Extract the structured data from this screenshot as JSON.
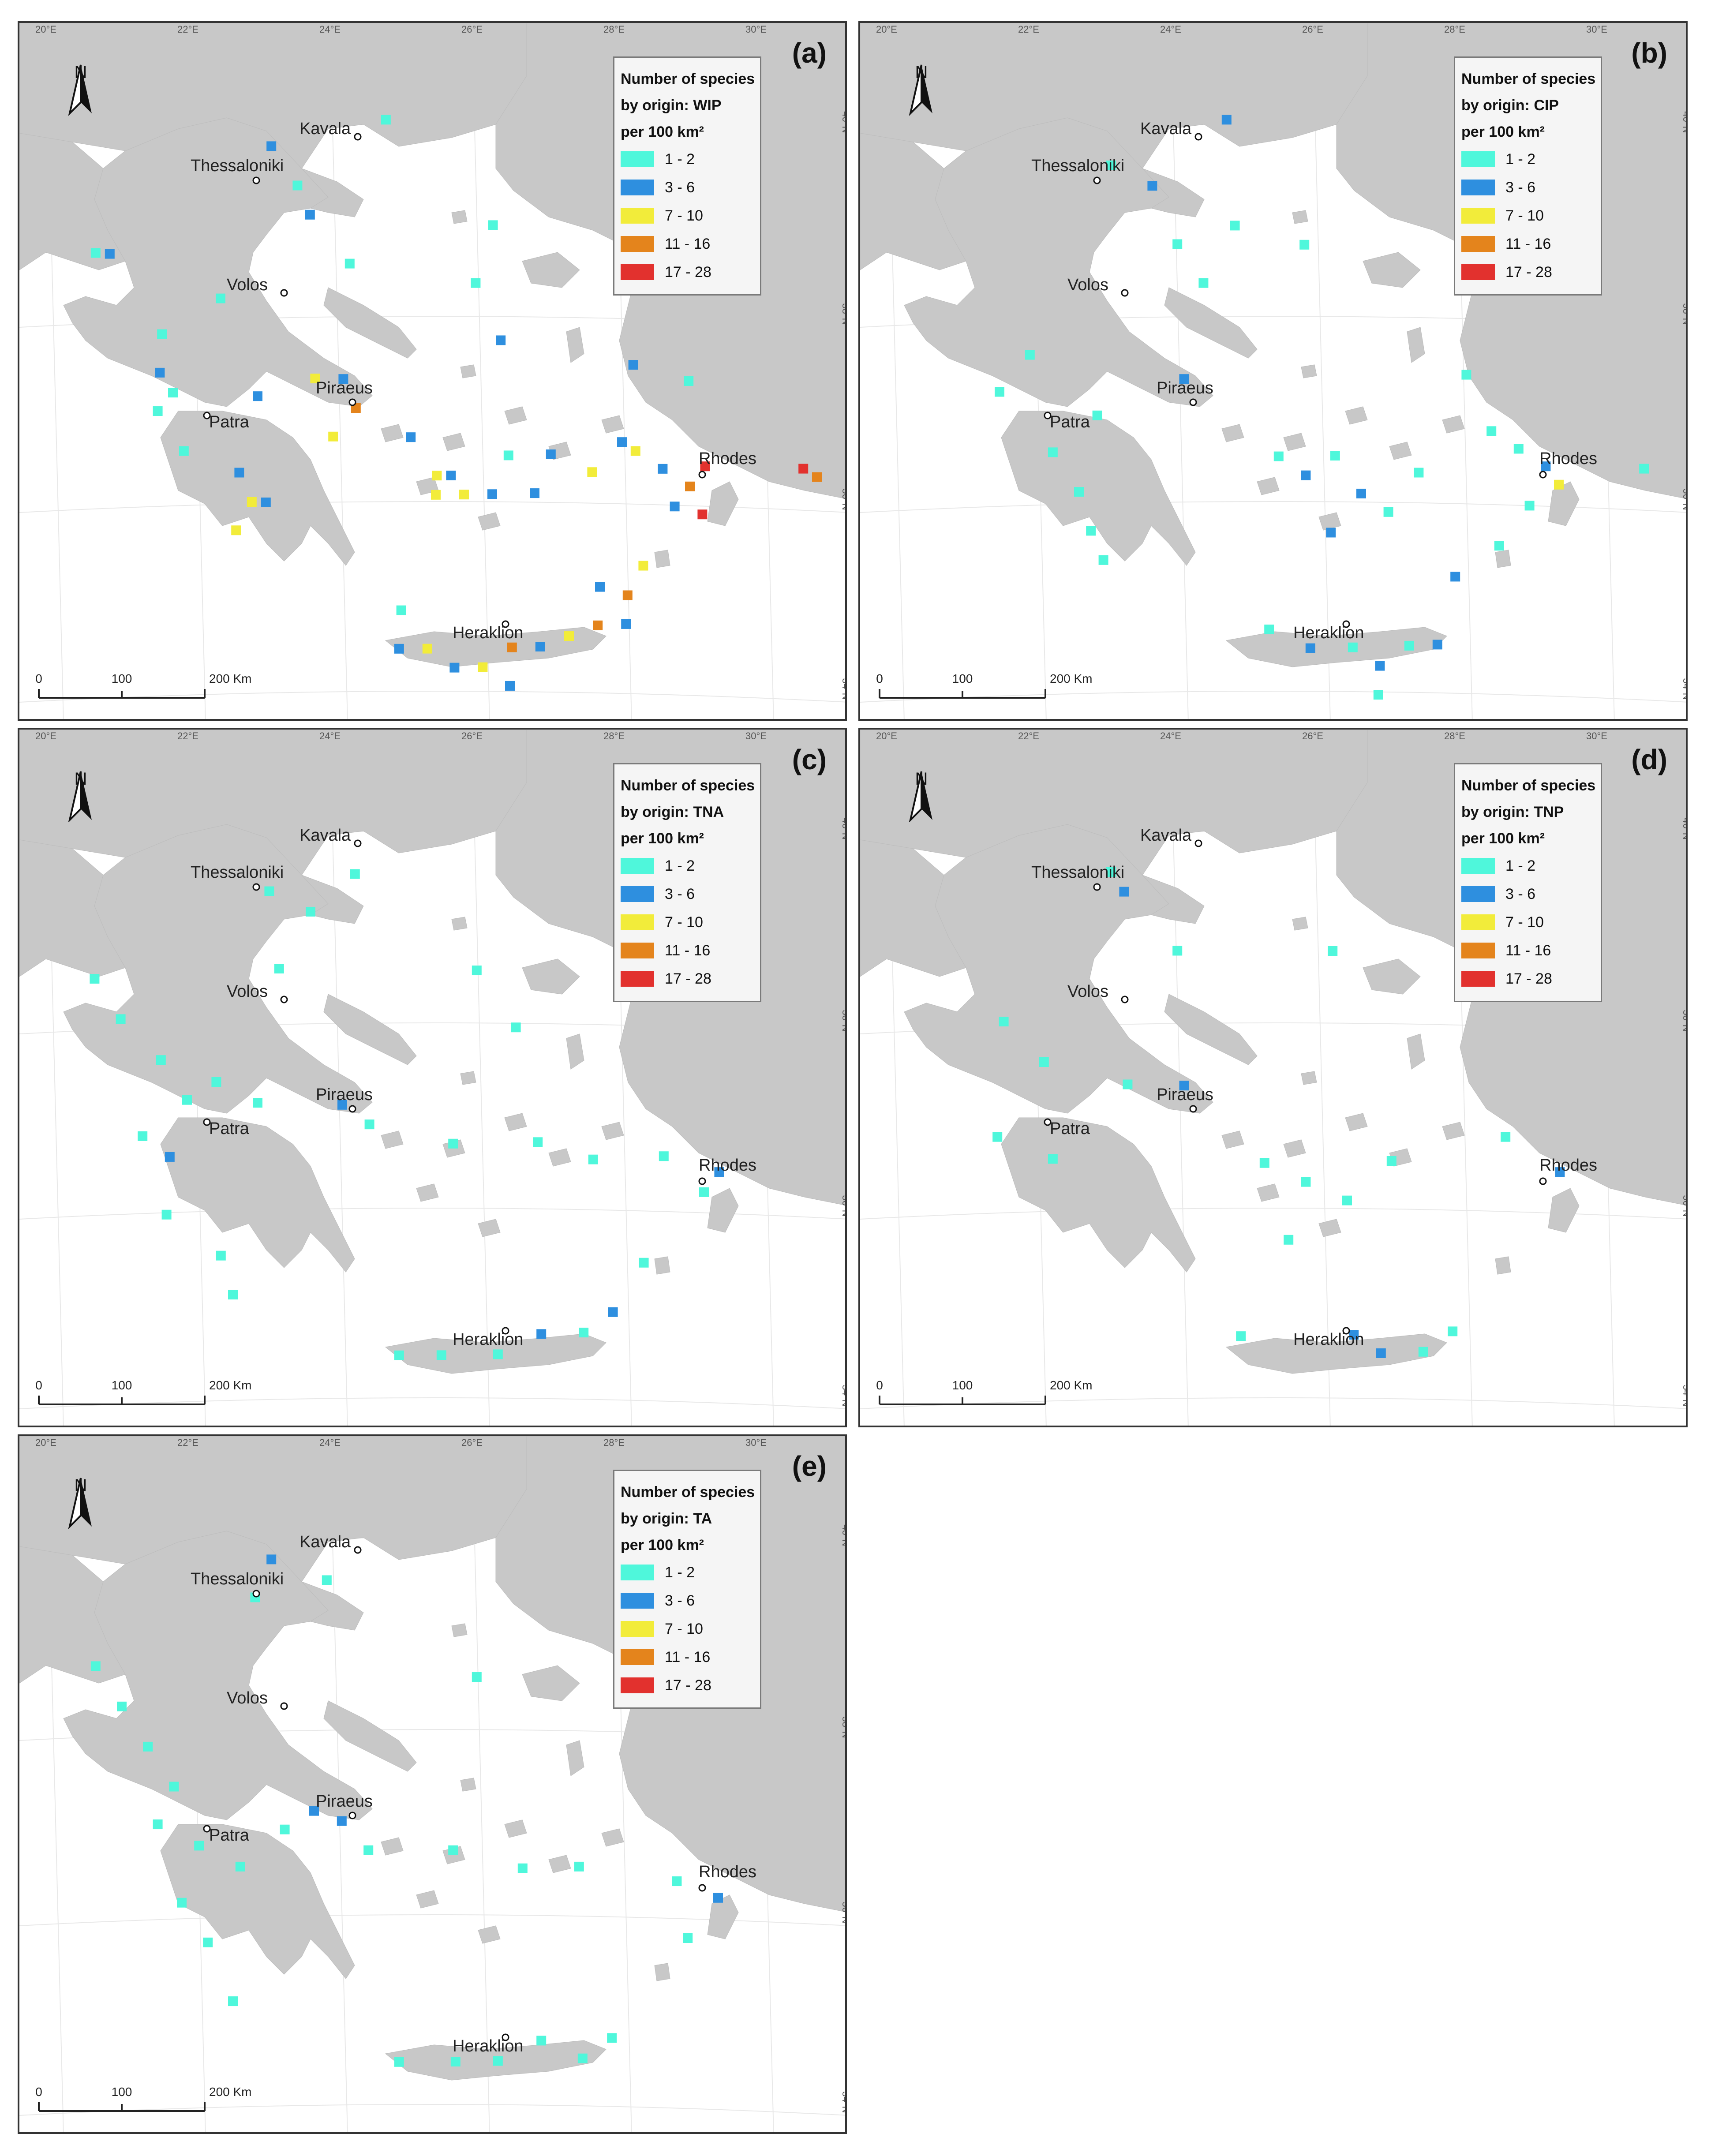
{
  "panels": [
    {
      "id": "a",
      "label": "(a)",
      "legend_title": [
        "Number of species",
        "by origin: WIP",
        "per 100 km²"
      ]
    },
    {
      "id": "b",
      "label": "(b)",
      "legend_title": [
        "Number of species",
        "by origin: CIP",
        "per 100 km²"
      ]
    },
    {
      "id": "c",
      "label": "(c)",
      "legend_title": [
        "Number of species",
        "by origin: TNA",
        "per 100 km²"
      ]
    },
    {
      "id": "d",
      "label": "(d)",
      "legend_title": [
        "Number of species",
        "by origin: TNP",
        "per 100 km²"
      ]
    },
    {
      "id": "e",
      "label": "(e)",
      "legend_title": [
        "Number of species",
        "by origin: TA",
        "per 100 km²"
      ]
    }
  ],
  "legend_classes": [
    {
      "label": "1 - 2",
      "color": "#4ff7db"
    },
    {
      "label": "3 - 6",
      "color": "#2e8fdf"
    },
    {
      "label": "7 - 10",
      "color": "#f2ec3a"
    },
    {
      "label": "11 - 16",
      "color": "#e4841c"
    },
    {
      "label": "17 - 28",
      "color": "#e2312e"
    }
  ],
  "north_label": "N",
  "lon_ticks": [
    "20°E",
    "22°E",
    "24°E",
    "26°E",
    "28°E",
    "30°E"
  ],
  "lat_ticks": [
    "40°N",
    "38°N",
    "36°N",
    "34°N"
  ],
  "scale_ticks": [
    "0",
    "100",
    "200 Km"
  ],
  "cities": [
    "Kavala",
    "Thessaloniki",
    "Volos",
    "Piraeus",
    "Patra",
    "Rhodes",
    "Heraklion"
  ],
  "colors": {
    "land": "#c8c8c8",
    "sea": "#ffffff",
    "frame": "#333333"
  },
  "grid_cells": {
    "a": [
      [
        "1-2",
        24.4,
        39.9
      ],
      [
        "3-6",
        22.8,
        39.6
      ],
      [
        "1-2",
        23.2,
        39.2
      ],
      [
        "3-6",
        23.4,
        38.9
      ],
      [
        "1-2",
        20.4,
        38.4
      ],
      [
        "3-6",
        20.6,
        38.4
      ],
      [
        "1-2",
        21.4,
        37.6
      ],
      [
        "3-6",
        21.4,
        37.2
      ],
      [
        "1-2",
        21.6,
        37.0
      ],
      [
        "3-6",
        22.8,
        37.0
      ],
      [
        "7-10",
        23.6,
        37.2
      ],
      [
        "3-6",
        24.0,
        37.2
      ],
      [
        "11-16",
        24.2,
        36.9
      ],
      [
        "7-10",
        23.9,
        36.6
      ],
      [
        "1-2",
        21.8,
        36.4
      ],
      [
        "3-6",
        22.6,
        36.2
      ],
      [
        "7-10",
        22.8,
        35.9
      ],
      [
        "3-6",
        23.0,
        35.9
      ],
      [
        "7-10",
        22.6,
        35.6
      ],
      [
        "1-2",
        21.4,
        36.8
      ],
      [
        "3-6",
        25.0,
        36.6
      ],
      [
        "7-10",
        25.4,
        36.2
      ],
      [
        "3-6",
        25.6,
        36.2
      ],
      [
        "7-10",
        25.8,
        36.0
      ],
      [
        "3-6",
        26.2,
        36.0
      ],
      [
        "7-10",
        25.4,
        36.0
      ],
      [
        "3-6",
        26.8,
        36.0
      ],
      [
        "1-2",
        26.4,
        36.4
      ],
      [
        "3-6",
        27.0,
        36.4
      ],
      [
        "7-10",
        27.6,
        36.2
      ],
      [
        "3-6",
        28.0,
        36.5
      ],
      [
        "7-10",
        28.2,
        36.4
      ],
      [
        "3-6",
        28.6,
        36.2
      ],
      [
        "17-28",
        29.2,
        36.2
      ],
      [
        "11-16",
        29.0,
        36.0
      ],
      [
        "3-6",
        28.8,
        35.8
      ],
      [
        "17-28",
        29.2,
        35.7
      ],
      [
        "7-10",
        28.4,
        35.2
      ],
      [
        "11-16",
        28.2,
        34.9
      ],
      [
        "3-6",
        27.8,
        35.0
      ],
      [
        "1-2",
        28.9,
        37.1
      ],
      [
        "3-6",
        28.1,
        37.3
      ],
      [
        "17-28",
        30.6,
        36.1
      ],
      [
        "11-16",
        30.8,
        36.0
      ],
      [
        "3-6",
        25.0,
        34.4
      ],
      [
        "7-10",
        25.4,
        34.4
      ],
      [
        "3-6",
        25.8,
        34.2
      ],
      [
        "7-10",
        26.2,
        34.2
      ],
      [
        "11-16",
        26.6,
        34.4
      ],
      [
        "3-6",
        27.0,
        34.4
      ],
      [
        "7-10",
        27.4,
        34.5
      ],
      [
        "11-16",
        27.8,
        34.6
      ],
      [
        "3-6",
        28.2,
        34.6
      ],
      [
        "1-2",
        25.0,
        34.8
      ],
      [
        "3-6",
        26.6,
        34.0
      ],
      [
        "1-2",
        25.8,
        38.2
      ],
      [
        "1-2",
        24.0,
        38.4
      ],
      [
        "3-6",
        26.2,
        37.6
      ],
      [
        "1-2",
        26.0,
        38.8
      ],
      [
        "1-2",
        22.2,
        38.0
      ]
    ],
    "b": [
      [
        "3-6",
        24.4,
        39.9
      ],
      [
        "1-2",
        22.8,
        39.4
      ],
      [
        "3-6",
        23.4,
        39.2
      ],
      [
        "1-2",
        23.8,
        38.6
      ],
      [
        "1-2",
        24.2,
        38.2
      ],
      [
        "1-2",
        21.8,
        37.4
      ],
      [
        "1-2",
        21.4,
        37.0
      ],
      [
        "3-6",
        24.0,
        37.2
      ],
      [
        "1-2",
        22.8,
        36.8
      ],
      [
        "1-2",
        22.2,
        36.4
      ],
      [
        "1-2",
        22.6,
        36.0
      ],
      [
        "1-2",
        22.8,
        35.6
      ],
      [
        "1-2",
        23.0,
        35.3
      ],
      [
        "1-2",
        25.4,
        36.4
      ],
      [
        "3-6",
        25.8,
        36.2
      ],
      [
        "1-2",
        26.2,
        36.4
      ],
      [
        "3-6",
        26.6,
        36.0
      ],
      [
        "1-2",
        27.0,
        35.8
      ],
      [
        "1-2",
        27.4,
        36.2
      ],
      [
        "3-6",
        26.2,
        35.6
      ],
      [
        "1-2",
        28.4,
        36.6
      ],
      [
        "1-2",
        28.8,
        36.4
      ],
      [
        "3-6",
        29.2,
        36.2
      ],
      [
        "7-10",
        29.4,
        36.0
      ],
      [
        "1-2",
        29.0,
        35.8
      ],
      [
        "1-2",
        28.6,
        35.4
      ],
      [
        "3-6",
        28.0,
        35.1
      ],
      [
        "1-2",
        30.6,
        36.1
      ],
      [
        "1-2",
        25.4,
        34.6
      ],
      [
        "3-6",
        26.0,
        34.4
      ],
      [
        "1-2",
        26.6,
        34.4
      ],
      [
        "3-6",
        27.0,
        34.2
      ],
      [
        "1-2",
        27.4,
        34.4
      ],
      [
        "3-6",
        27.8,
        34.4
      ],
      [
        "1-2",
        27.0,
        33.9
      ],
      [
        "1-2",
        25.6,
        38.6
      ],
      [
        "1-2",
        28.0,
        37.2
      ],
      [
        "1-2",
        24.6,
        38.8
      ]
    ],
    "c": [
      [
        "1-2",
        22.8,
        39.2
      ],
      [
        "1-2",
        23.4,
        39.0
      ],
      [
        "1-2",
        24.0,
        39.4
      ],
      [
        "1-2",
        23.0,
        38.4
      ],
      [
        "1-2",
        20.4,
        38.2
      ],
      [
        "1-2",
        20.8,
        37.8
      ],
      [
        "1-2",
        21.4,
        37.4
      ],
      [
        "1-2",
        21.8,
        37.0
      ],
      [
        "1-2",
        22.2,
        37.2
      ],
      [
        "1-2",
        22.8,
        37.0
      ],
      [
        "3-6",
        24.0,
        37.0
      ],
      [
        "1-2",
        24.4,
        36.8
      ],
      [
        "1-2",
        21.2,
        36.6
      ],
      [
        "3-6",
        21.6,
        36.4
      ],
      [
        "1-2",
        21.6,
        35.8
      ],
      [
        "1-2",
        22.4,
        35.4
      ],
      [
        "1-2",
        22.6,
        35.0
      ],
      [
        "1-2",
        25.8,
        38.4
      ],
      [
        "1-2",
        26.4,
        37.8
      ],
      [
        "1-2",
        25.6,
        36.6
      ],
      [
        "1-2",
        26.8,
        36.6
      ],
      [
        "1-2",
        27.6,
        36.4
      ],
      [
        "1-2",
        28.6,
        36.4
      ],
      [
        "1-2",
        29.2,
        36.0
      ],
      [
        "3-6",
        29.4,
        36.2
      ],
      [
        "1-2",
        25.0,
        34.4
      ],
      [
        "1-2",
        25.6,
        34.4
      ],
      [
        "1-2",
        26.4,
        34.4
      ],
      [
        "3-6",
        27.0,
        34.6
      ],
      [
        "1-2",
        27.6,
        34.6
      ],
      [
        "3-6",
        28.0,
        34.8
      ],
      [
        "1-2",
        28.4,
        35.3
      ]
    ],
    "d": [
      [
        "1-2",
        22.8,
        39.4
      ],
      [
        "3-6",
        23.0,
        39.2
      ],
      [
        "1-2",
        23.8,
        38.6
      ],
      [
        "1-2",
        26.0,
        38.6
      ],
      [
        "1-2",
        21.4,
        37.8
      ],
      [
        "1-2",
        22.0,
        37.4
      ],
      [
        "1-2",
        21.4,
        36.6
      ],
      [
        "1-2",
        22.2,
        36.4
      ],
      [
        "1-2",
        23.2,
        37.2
      ],
      [
        "3-6",
        24.0,
        37.2
      ],
      [
        "1-2",
        25.2,
        36.4
      ],
      [
        "1-2",
        25.8,
        36.2
      ],
      [
        "1-2",
        26.4,
        36.0
      ],
      [
        "1-2",
        27.0,
        36.4
      ],
      [
        "1-2",
        25.6,
        35.6
      ],
      [
        "1-2",
        28.6,
        36.6
      ],
      [
        "3-6",
        29.4,
        36.2
      ],
      [
        "1-2",
        25.0,
        34.6
      ],
      [
        "3-6",
        26.6,
        34.6
      ],
      [
        "3-6",
        27.0,
        34.4
      ],
      [
        "1-2",
        27.6,
        34.4
      ],
      [
        "1-2",
        28.0,
        34.6
      ]
    ],
    "e": [
      [
        "3-6",
        22.8,
        39.6
      ],
      [
        "1-2",
        22.6,
        39.2
      ],
      [
        "1-2",
        23.6,
        39.4
      ],
      [
        "1-2",
        20.4,
        38.4
      ],
      [
        "1-2",
        20.8,
        38.0
      ],
      [
        "1-2",
        21.2,
        37.6
      ],
      [
        "1-2",
        21.6,
        37.2
      ],
      [
        "1-2",
        21.4,
        36.8
      ],
      [
        "1-2",
        22.0,
        36.6
      ],
      [
        "1-2",
        22.6,
        36.4
      ],
      [
        "1-2",
        23.2,
        36.8
      ],
      [
        "3-6",
        23.6,
        37.0
      ],
      [
        "3-6",
        24.0,
        36.9
      ],
      [
        "1-2",
        24.4,
        36.6
      ],
      [
        "1-2",
        21.8,
        36.0
      ],
      [
        "1-2",
        22.2,
        35.6
      ],
      [
        "1-2",
        22.6,
        35.0
      ],
      [
        "1-2",
        25.6,
        36.6
      ],
      [
        "1-2",
        26.6,
        36.4
      ],
      [
        "1-2",
        27.4,
        36.4
      ],
      [
        "1-2",
        28.8,
        36.2
      ],
      [
        "3-6",
        29.4,
        36.0
      ],
      [
        "1-2",
        29.0,
        35.6
      ],
      [
        "1-2",
        25.0,
        34.4
      ],
      [
        "1-2",
        25.8,
        34.4
      ],
      [
        "1-2",
        26.4,
        34.4
      ],
      [
        "1-2",
        27.0,
        34.6
      ],
      [
        "1-2",
        27.6,
        34.4
      ],
      [
        "1-2",
        28.0,
        34.6
      ],
      [
        "1-2",
        25.8,
        38.4
      ]
    ]
  }
}
